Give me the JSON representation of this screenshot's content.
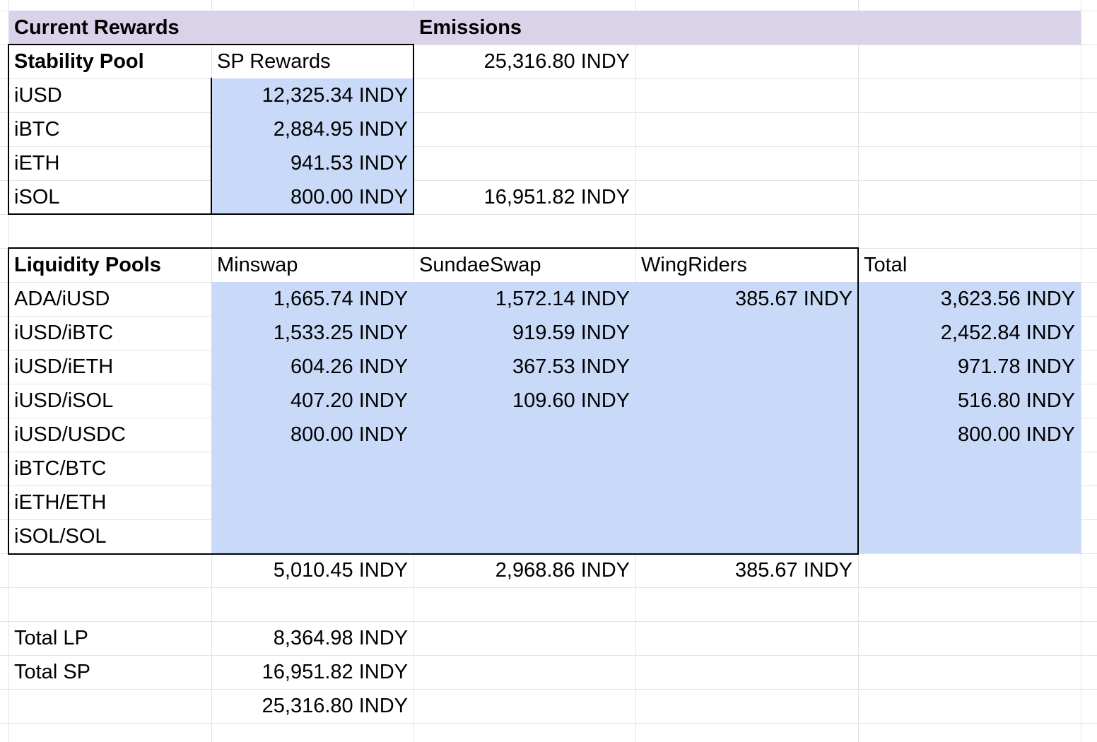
{
  "header": {
    "current_rewards": "Current Rewards",
    "emissions": "Emissions"
  },
  "stability_pool": {
    "title": "Stability Pool",
    "column": "SP Rewards",
    "rows": [
      {
        "asset": "iUSD",
        "reward": "12,325.34 INDY"
      },
      {
        "asset": "iBTC",
        "reward": "2,884.95 INDY"
      },
      {
        "asset": "iETH",
        "reward": "941.53 INDY"
      },
      {
        "asset": "iSOL",
        "reward": "800.00 INDY"
      }
    ],
    "emissions_total": "25,316.80 INDY",
    "emissions_sp": "16,951.82 INDY"
  },
  "liquidity_pools": {
    "title": "Liquidity Pools",
    "columns": [
      "Minswap",
      "SundaeSwap",
      "WingRiders",
      "Total"
    ],
    "rows": [
      {
        "pair": "ADA/iUSD",
        "values": [
          "1,665.74 INDY",
          "1,572.14 INDY",
          "385.67 INDY",
          "3,623.56 INDY"
        ]
      },
      {
        "pair": "iUSD/iBTC",
        "values": [
          "1,533.25 INDY",
          "919.59 INDY",
          "",
          "2,452.84 INDY"
        ]
      },
      {
        "pair": "iUSD/iETH",
        "values": [
          "604.26 INDY",
          "367.53 INDY",
          "",
          "971.78 INDY"
        ]
      },
      {
        "pair": "iUSD/iSOL",
        "values": [
          "407.20 INDY",
          "109.60 INDY",
          "",
          "516.80 INDY"
        ]
      },
      {
        "pair": "iUSD/USDC",
        "values": [
          "800.00 INDY",
          "",
          "",
          "800.00 INDY"
        ]
      },
      {
        "pair": "iBTC/BTC",
        "values": [
          "",
          "",
          "",
          ""
        ]
      },
      {
        "pair": "iETH/ETH",
        "values": [
          "",
          "",
          "",
          ""
        ]
      },
      {
        "pair": "iSOL/SOL",
        "values": [
          "",
          "",
          "",
          ""
        ]
      }
    ],
    "column_totals": [
      "5,010.45 INDY",
      "2,968.86 INDY",
      "385.67 INDY"
    ]
  },
  "summary": {
    "total_lp_label": "Total LP",
    "total_lp_value": "8,364.98 INDY",
    "total_sp_label": "Total SP",
    "total_sp_value": "16,951.82 INDY",
    "grand_total": "25,316.80 INDY"
  },
  "colors": {
    "header_bg": "#d9d2e9",
    "value_bg": "#c9daf8",
    "gridline": "#e2e3e3",
    "border": "#000000"
  }
}
